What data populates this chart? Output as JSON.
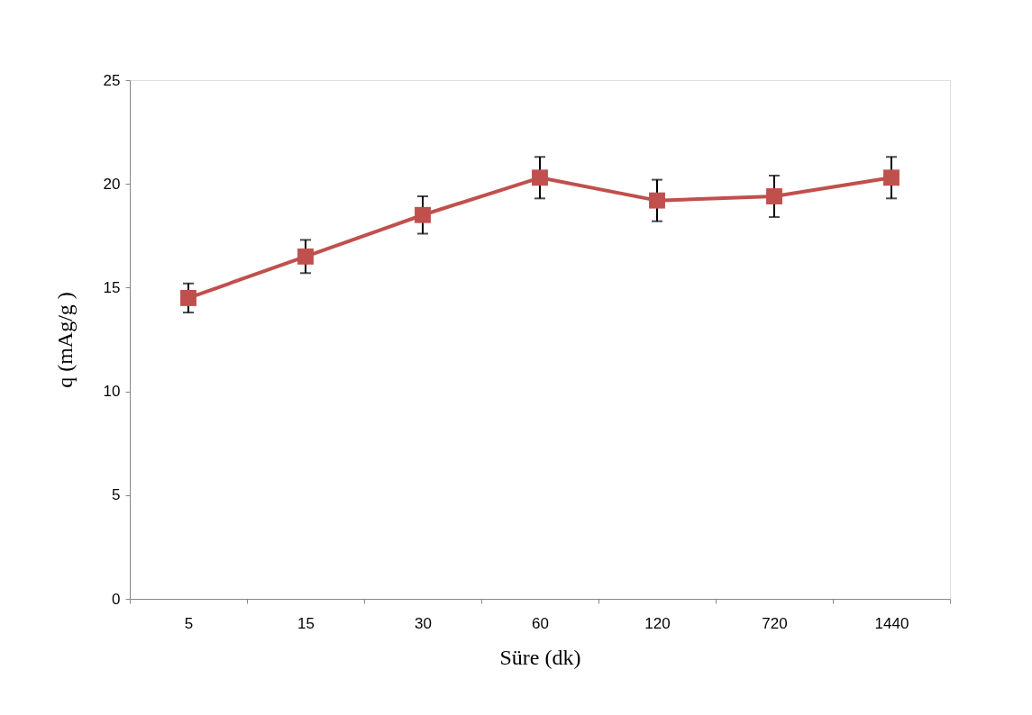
{
  "chart_data": {
    "type": "line",
    "xlabel": "Süre (dk)",
    "ylabel": "q (mAg/g )",
    "categories": [
      "5",
      "15",
      "30",
      "60",
      "120",
      "720",
      "1440"
    ],
    "series": [
      {
        "color": "#c0504d",
        "values": [
          14.5,
          16.5,
          18.5,
          20.3,
          19.2,
          19.4,
          20.3
        ],
        "errors": [
          0.7,
          0.8,
          0.9,
          1.0,
          1.0,
          1.0,
          1.0
        ]
      }
    ],
    "ylim": [
      0,
      25
    ],
    "yticks": [
      0,
      5,
      10,
      15,
      20,
      25
    ],
    "grid": false,
    "marker": "square",
    "line_style": "solid"
  }
}
